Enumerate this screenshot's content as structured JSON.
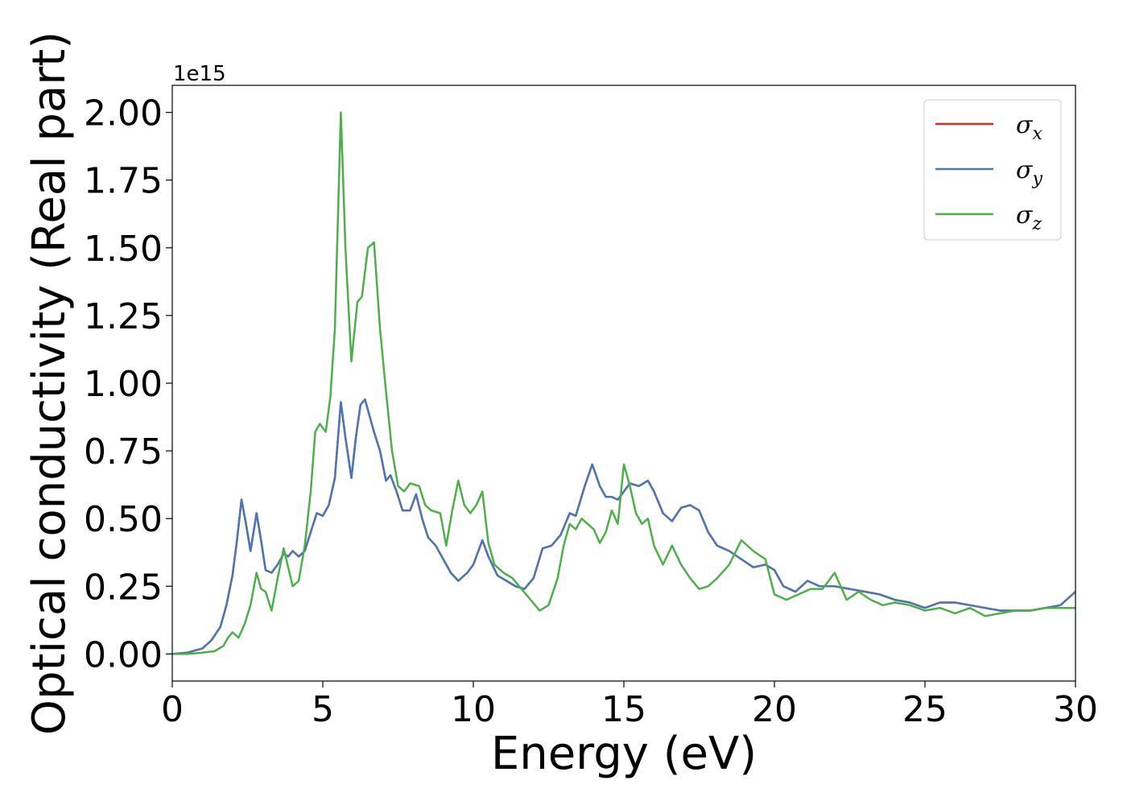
{
  "chart_data": {
    "type": "line",
    "xlabel": "Energy (eV)",
    "ylabel": "Optical conductivity (Real part)",
    "offset_text": "1e15",
    "xlim": [
      0,
      30
    ],
    "ylim": [
      -0.1,
      2.1
    ],
    "xticks": [
      0,
      5,
      10,
      15,
      20,
      25,
      30
    ],
    "xtick_labels": [
      "0",
      "5",
      "10",
      "15",
      "20",
      "25",
      "30"
    ],
    "yticks": [
      0.0,
      0.25,
      0.5,
      0.75,
      1.0,
      1.25,
      1.5,
      1.75,
      2.0
    ],
    "ytick_labels": [
      "0.00",
      "0.25",
      "0.50",
      "0.75",
      "1.00",
      "1.25",
      "1.50",
      "1.75",
      "2.00"
    ],
    "grid": false,
    "legend_position": "top-right",
    "series": [
      {
        "name": "σx",
        "symbol": "σ",
        "subscript": "x",
        "color": "#d62728",
        "x": [
          0,
          0.5,
          1.0,
          1.3,
          1.6,
          1.8,
          2.0,
          2.15,
          2.3,
          2.45,
          2.6,
          2.8,
          2.95,
          3.1,
          3.3,
          3.5,
          3.7,
          3.85,
          4.0,
          4.2,
          4.4,
          4.6,
          4.8,
          5.0,
          5.2,
          5.4,
          5.6,
          5.75,
          5.95,
          6.1,
          6.25,
          6.4,
          6.55,
          6.7,
          6.9,
          7.1,
          7.25,
          7.45,
          7.65,
          7.9,
          8.1,
          8.3,
          8.5,
          8.75,
          9.0,
          9.25,
          9.5,
          9.8,
          10.0,
          10.3,
          10.5,
          10.8,
          11.1,
          11.4,
          11.7,
          12.0,
          12.3,
          12.6,
          12.9,
          13.2,
          13.4,
          13.7,
          13.95,
          14.2,
          14.4,
          14.6,
          14.8,
          15.0,
          15.2,
          15.5,
          15.8,
          16.0,
          16.3,
          16.6,
          16.9,
          17.2,
          17.5,
          17.8,
          18.1,
          18.5,
          18.9,
          19.3,
          19.7,
          20.0,
          20.3,
          20.7,
          21.1,
          21.5,
          22.0,
          22.5,
          23.0,
          23.5,
          24.0,
          24.5,
          25.0,
          25.5,
          26.0,
          26.5,
          27.0,
          27.5,
          28.0,
          28.5,
          29.0,
          29.5,
          30.0
        ],
        "y": [
          0.0,
          0.005,
          0.02,
          0.05,
          0.1,
          0.18,
          0.29,
          0.42,
          0.57,
          0.48,
          0.38,
          0.52,
          0.42,
          0.31,
          0.3,
          0.33,
          0.37,
          0.36,
          0.38,
          0.36,
          0.38,
          0.45,
          0.52,
          0.51,
          0.55,
          0.65,
          0.93,
          0.8,
          0.65,
          0.8,
          0.92,
          0.94,
          0.88,
          0.82,
          0.75,
          0.64,
          0.66,
          0.6,
          0.53,
          0.53,
          0.59,
          0.5,
          0.43,
          0.4,
          0.35,
          0.3,
          0.27,
          0.3,
          0.33,
          0.42,
          0.36,
          0.29,
          0.27,
          0.25,
          0.24,
          0.28,
          0.39,
          0.4,
          0.44,
          0.52,
          0.51,
          0.62,
          0.7,
          0.62,
          0.58,
          0.58,
          0.57,
          0.6,
          0.63,
          0.62,
          0.64,
          0.6,
          0.52,
          0.49,
          0.54,
          0.55,
          0.53,
          0.45,
          0.4,
          0.38,
          0.35,
          0.32,
          0.33,
          0.31,
          0.25,
          0.23,
          0.27,
          0.25,
          0.25,
          0.24,
          0.23,
          0.22,
          0.2,
          0.19,
          0.17,
          0.19,
          0.19,
          0.18,
          0.17,
          0.16,
          0.16,
          0.16,
          0.17,
          0.18,
          0.23
        ]
      },
      {
        "name": "σy",
        "symbol": "σ",
        "subscript": "y",
        "color": "#4a78b0",
        "x": [
          0,
          0.5,
          1.0,
          1.3,
          1.6,
          1.8,
          2.0,
          2.15,
          2.3,
          2.45,
          2.6,
          2.8,
          2.95,
          3.1,
          3.3,
          3.5,
          3.7,
          3.85,
          4.0,
          4.2,
          4.4,
          4.6,
          4.8,
          5.0,
          5.2,
          5.4,
          5.6,
          5.75,
          5.95,
          6.1,
          6.25,
          6.4,
          6.55,
          6.7,
          6.9,
          7.1,
          7.25,
          7.45,
          7.65,
          7.9,
          8.1,
          8.3,
          8.5,
          8.75,
          9.0,
          9.25,
          9.5,
          9.8,
          10.0,
          10.3,
          10.5,
          10.8,
          11.1,
          11.4,
          11.7,
          12.0,
          12.3,
          12.6,
          12.9,
          13.2,
          13.4,
          13.7,
          13.95,
          14.2,
          14.4,
          14.6,
          14.8,
          15.0,
          15.2,
          15.5,
          15.8,
          16.0,
          16.3,
          16.6,
          16.9,
          17.2,
          17.5,
          17.8,
          18.1,
          18.5,
          18.9,
          19.3,
          19.7,
          20.0,
          20.3,
          20.7,
          21.1,
          21.5,
          22.0,
          22.5,
          23.0,
          23.5,
          24.0,
          24.5,
          25.0,
          25.5,
          26.0,
          26.5,
          27.0,
          27.5,
          28.0,
          28.5,
          29.0,
          29.5,
          30.0
        ],
        "y": [
          0.0,
          0.005,
          0.02,
          0.05,
          0.1,
          0.18,
          0.29,
          0.42,
          0.57,
          0.48,
          0.38,
          0.52,
          0.42,
          0.31,
          0.3,
          0.33,
          0.37,
          0.36,
          0.38,
          0.36,
          0.38,
          0.45,
          0.52,
          0.51,
          0.55,
          0.65,
          0.93,
          0.8,
          0.65,
          0.8,
          0.92,
          0.94,
          0.88,
          0.82,
          0.75,
          0.64,
          0.66,
          0.6,
          0.53,
          0.53,
          0.59,
          0.5,
          0.43,
          0.4,
          0.35,
          0.3,
          0.27,
          0.3,
          0.33,
          0.42,
          0.36,
          0.29,
          0.27,
          0.25,
          0.24,
          0.28,
          0.39,
          0.4,
          0.44,
          0.52,
          0.51,
          0.62,
          0.7,
          0.62,
          0.58,
          0.58,
          0.57,
          0.6,
          0.63,
          0.62,
          0.64,
          0.6,
          0.52,
          0.49,
          0.54,
          0.55,
          0.53,
          0.45,
          0.4,
          0.38,
          0.35,
          0.32,
          0.33,
          0.31,
          0.25,
          0.23,
          0.27,
          0.25,
          0.25,
          0.24,
          0.23,
          0.22,
          0.2,
          0.19,
          0.17,
          0.19,
          0.19,
          0.18,
          0.17,
          0.16,
          0.16,
          0.16,
          0.17,
          0.18,
          0.23
        ]
      },
      {
        "name": "σz",
        "symbol": "σ",
        "subscript": "z",
        "color": "#4daf4a",
        "x": [
          0,
          0.5,
          1.0,
          1.4,
          1.7,
          1.85,
          2.0,
          2.2,
          2.4,
          2.6,
          2.8,
          2.95,
          3.1,
          3.3,
          3.5,
          3.7,
          3.85,
          4.0,
          4.2,
          4.4,
          4.6,
          4.75,
          4.9,
          5.1,
          5.25,
          5.4,
          5.6,
          5.75,
          5.95,
          6.15,
          6.3,
          6.5,
          6.7,
          6.9,
          7.1,
          7.3,
          7.5,
          7.7,
          7.9,
          8.2,
          8.4,
          8.6,
          8.9,
          9.1,
          9.3,
          9.5,
          9.7,
          9.9,
          10.1,
          10.3,
          10.5,
          10.7,
          11.0,
          11.3,
          11.6,
          11.9,
          12.2,
          12.5,
          12.8,
          13.0,
          13.2,
          13.4,
          13.6,
          13.8,
          14.0,
          14.2,
          14.4,
          14.6,
          14.8,
          15.0,
          15.2,
          15.4,
          15.6,
          15.8,
          16.0,
          16.3,
          16.6,
          16.9,
          17.2,
          17.5,
          17.8,
          18.1,
          18.5,
          18.9,
          19.3,
          19.7,
          20.0,
          20.4,
          20.8,
          21.2,
          21.6,
          22.0,
          22.4,
          22.8,
          23.2,
          23.6,
          24.0,
          24.5,
          25.0,
          25.5,
          26.0,
          26.5,
          27.0,
          27.5,
          28.0,
          28.5,
          29.0,
          29.5,
          30.0
        ],
        "y": [
          0.0,
          0.0,
          0.005,
          0.01,
          0.03,
          0.06,
          0.08,
          0.06,
          0.11,
          0.18,
          0.3,
          0.24,
          0.23,
          0.16,
          0.28,
          0.39,
          0.32,
          0.25,
          0.27,
          0.4,
          0.6,
          0.82,
          0.85,
          0.82,
          0.95,
          1.2,
          2.0,
          1.5,
          1.08,
          1.3,
          1.32,
          1.5,
          1.52,
          1.2,
          0.97,
          0.75,
          0.62,
          0.6,
          0.63,
          0.62,
          0.55,
          0.53,
          0.52,
          0.4,
          0.53,
          0.64,
          0.55,
          0.52,
          0.55,
          0.6,
          0.41,
          0.33,
          0.3,
          0.28,
          0.24,
          0.2,
          0.16,
          0.18,
          0.28,
          0.4,
          0.48,
          0.46,
          0.5,
          0.48,
          0.46,
          0.41,
          0.45,
          0.53,
          0.48,
          0.7,
          0.62,
          0.52,
          0.48,
          0.5,
          0.4,
          0.33,
          0.4,
          0.33,
          0.28,
          0.24,
          0.25,
          0.28,
          0.33,
          0.42,
          0.38,
          0.35,
          0.22,
          0.2,
          0.22,
          0.24,
          0.24,
          0.3,
          0.2,
          0.23,
          0.2,
          0.18,
          0.19,
          0.18,
          0.16,
          0.17,
          0.15,
          0.17,
          0.14,
          0.15,
          0.16,
          0.16,
          0.17,
          0.17,
          0.17
        ]
      }
    ]
  }
}
